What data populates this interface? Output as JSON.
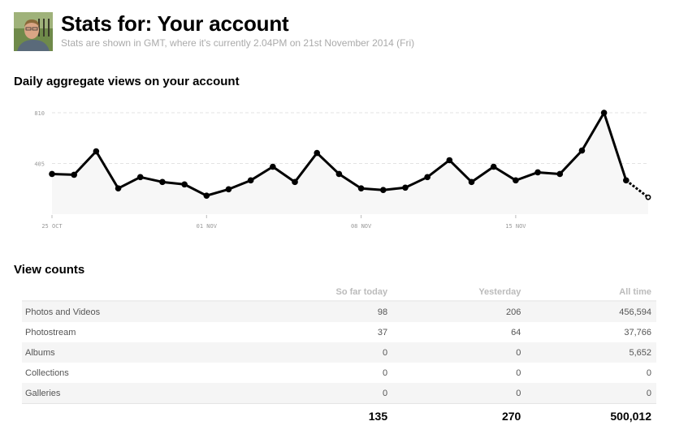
{
  "header": {
    "title": "Stats for: Your account",
    "subtitle": "Stats are shown in GMT, where it's currently 2.04PM on 21st November 2014 (Fri)"
  },
  "chart_section": {
    "title": "Daily aggregate views on your account"
  },
  "chart_data": {
    "type": "line",
    "title": "Daily aggregate views on your account",
    "x": [
      "25 Oct",
      "26 Oct",
      "27 Oct",
      "28 Oct",
      "29 Oct",
      "30 Oct",
      "31 Oct",
      "01 Nov",
      "02 Nov",
      "03 Nov",
      "04 Nov",
      "05 Nov",
      "06 Nov",
      "07 Nov",
      "08 Nov",
      "09 Nov",
      "10 Nov",
      "11 Nov",
      "12 Nov",
      "13 Nov",
      "14 Nov",
      "15 Nov",
      "16 Nov",
      "17 Nov",
      "18 Nov",
      "19 Nov",
      "20 Nov",
      "21 Nov"
    ],
    "values": [
      321,
      315,
      502,
      206,
      296,
      257,
      238,
      148,
      199,
      270,
      379,
      257,
      489,
      321,
      206,
      193,
      212,
      296,
      431,
      257,
      379,
      270,
      334,
      321,
      508,
      810,
      270,
      135
    ],
    "last_point_partial": true,
    "y_ticks": [
      {
        "value": 405,
        "label": "405"
      },
      {
        "value": 810,
        "label": "810"
      }
    ],
    "x_ticks": [
      {
        "index": 0,
        "label": "25 OCT"
      },
      {
        "index": 7,
        "label": "01 NOV"
      },
      {
        "index": 14,
        "label": "08 NOV"
      },
      {
        "index": 21,
        "label": "15 NOV"
      }
    ],
    "ylim": [
      0,
      810
    ],
    "grid": true,
    "line_color": "#000000",
    "fill_color": "#f7f7f7"
  },
  "view_counts": {
    "title": "View counts",
    "columns": [
      "",
      "So far today",
      "Yesterday",
      "All time"
    ],
    "rows": [
      {
        "label": "Photos and Videos",
        "today": "98",
        "yesterday": "206",
        "all_time": "456,594"
      },
      {
        "label": "Photostream",
        "today": "37",
        "yesterday": "64",
        "all_time": "37,766"
      },
      {
        "label": "Albums",
        "today": "0",
        "yesterday": "0",
        "all_time": "5,652"
      },
      {
        "label": "Collections",
        "today": "0",
        "yesterday": "0",
        "all_time": "0"
      },
      {
        "label": "Galleries",
        "today": "0",
        "yesterday": "0",
        "all_time": "0"
      }
    ],
    "totals": {
      "today": "135",
      "yesterday": "270",
      "all_time": "500,012"
    }
  }
}
